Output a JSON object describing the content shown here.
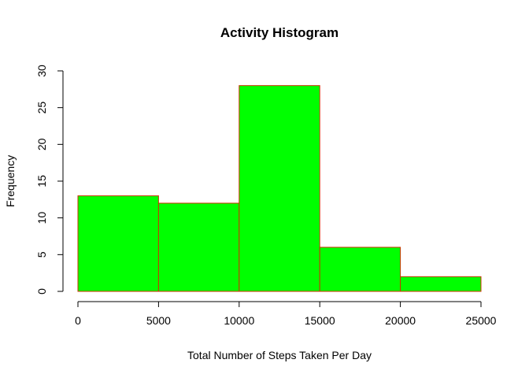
{
  "chart_data": {
    "type": "bar",
    "title": "Activity Histogram",
    "xlabel": "Total Number of Steps Taken Per Day",
    "ylabel": "Frequency",
    "bins": [
      {
        "start": 0,
        "end": 5000,
        "value": 13
      },
      {
        "start": 5000,
        "end": 10000,
        "value": 12
      },
      {
        "start": 10000,
        "end": 15000,
        "value": 28
      },
      {
        "start": 15000,
        "end": 20000,
        "value": 6
      },
      {
        "start": 20000,
        "end": 25000,
        "value": 2
      }
    ],
    "xlim": [
      0,
      25000
    ],
    "ylim": [
      0,
      30
    ],
    "x_ticks": [
      "0",
      "5000",
      "10000",
      "15000",
      "20000",
      "25000"
    ],
    "y_ticks": [
      "0",
      "5",
      "10",
      "15",
      "20",
      "25",
      "30"
    ],
    "grid": false,
    "bar_fill_color": "#00ff00",
    "bar_border_color": "#cc3300"
  }
}
